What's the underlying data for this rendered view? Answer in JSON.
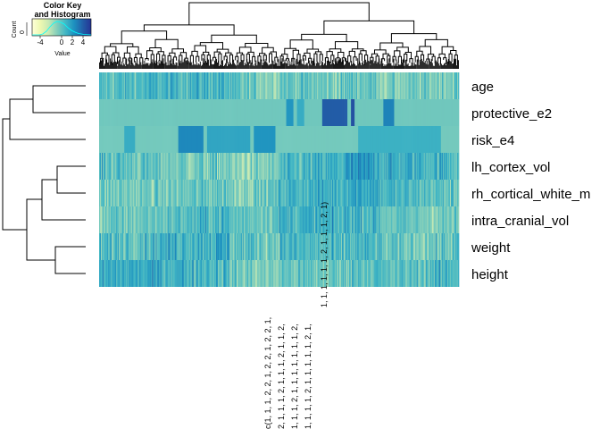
{
  "chart_data": {
    "type": "heatmap",
    "title": "",
    "rows": [
      "age",
      "protective_e2",
      "risk_e4",
      "lh_cortex_vol",
      "rh_cortical_white_m",
      "intra_cranial_vol",
      "weight",
      "height"
    ],
    "color_key": {
      "title_line1": "Color Key",
      "title_line2": "and Histogram",
      "x_label": "Value",
      "y_label": "Count",
      "y_tick": "0",
      "ticks": [
        "-4",
        "0",
        "2",
        "4"
      ],
      "tick_values": [
        -4,
        0,
        2,
        4
      ],
      "range": [
        -5.5,
        5.5
      ],
      "palette": [
        "#ffffd9",
        "#edf8b1",
        "#c7e9b4",
        "#7fcdbb",
        "#41b6c4",
        "#1d91c0",
        "#225ea8",
        "#253494"
      ]
    },
    "column_labels": [
      "c(1, 1, 1, 2, 2, 1, 2, 2, 1, 2, 2, 1,",
      "2, 1, 1, 1, 2, 1, 1, 1, 2, 1, 1, 2,",
      "1, 1, 1, 2, 1, 1, 1, 1, 1, 1, 1, 2,",
      "1, 1, 1, 1, 2, 1, 1, 1, 1, 1, 2, 1,",
      "1, 1, 1, 1, 1, 1, 2, 1, 1, 1, 2, 1)"
    ],
    "row_order_dendrogram": "age, protective_e2, risk_e4 | lh_cortex_vol, rh_cortical_white_m, intra_cranial_vol | weight, height",
    "row_profiles": {
      "age": {
        "mean": 0.0,
        "spread": 1.6,
        "note": "continuous, mixed values"
      },
      "protective_e2": {
        "baseline": -0.4,
        "blocks": [
          {
            "from": 0.52,
            "to": 0.54,
            "value": 2.2
          },
          {
            "from": 0.55,
            "to": 0.57,
            "value": 1.2
          },
          {
            "from": 0.62,
            "to": 0.69,
            "value": 4.0
          },
          {
            "from": 0.7,
            "to": 0.71,
            "value": 4.5
          },
          {
            "from": 0.79,
            "to": 0.82,
            "value": 2.8
          }
        ]
      },
      "risk_e4": {
        "baseline": -0.5,
        "blocks": [
          {
            "from": 0.07,
            "to": 0.1,
            "value": 1.2
          },
          {
            "from": 0.22,
            "to": 0.29,
            "value": 2.6
          },
          {
            "from": 0.3,
            "to": 0.42,
            "value": 1.5
          },
          {
            "from": 0.43,
            "to": 0.49,
            "value": 2.2
          },
          {
            "from": 0.72,
            "to": 0.95,
            "value": 1.0
          }
        ]
      },
      "lh_cortex_vol": {
        "mean": 0.3,
        "spread": 1.7
      },
      "rh_cortical_white_m": {
        "mean": 0.2,
        "spread": 1.6
      },
      "intra_cranial_vol": {
        "mean": 0.2,
        "spread": 1.6
      },
      "weight": {
        "mean": 0.4,
        "spread": 1.8
      },
      "height": {
        "mean": 0.4,
        "spread": 1.7
      }
    }
  }
}
